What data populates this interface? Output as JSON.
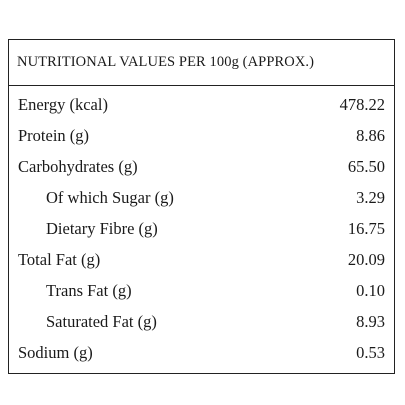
{
  "header": {
    "title": "NUTRITIONAL VALUES PER 100g (APPROX.)"
  },
  "rows": [
    {
      "label": "Energy (kcal)",
      "value": "478.22",
      "indent": false
    },
    {
      "label": "Protein (g)",
      "value": "8.86",
      "indent": false
    },
    {
      "label": "Carbohydrates (g)",
      "value": "65.50",
      "indent": false
    },
    {
      "label": "Of which Sugar (g)",
      "value": "3.29",
      "indent": true
    },
    {
      "label": "Dietary Fibre (g)",
      "value": "16.75",
      "indent": true
    },
    {
      "label": "Total Fat (g)",
      "value": "20.09",
      "indent": false
    },
    {
      "label": "Trans Fat (g)",
      "value": "0.10",
      "indent": true
    },
    {
      "label": "Saturated Fat (g)",
      "value": "8.93",
      "indent": true
    },
    {
      "label": "Sodium (g)",
      "value": "0.53",
      "indent": false
    }
  ]
}
